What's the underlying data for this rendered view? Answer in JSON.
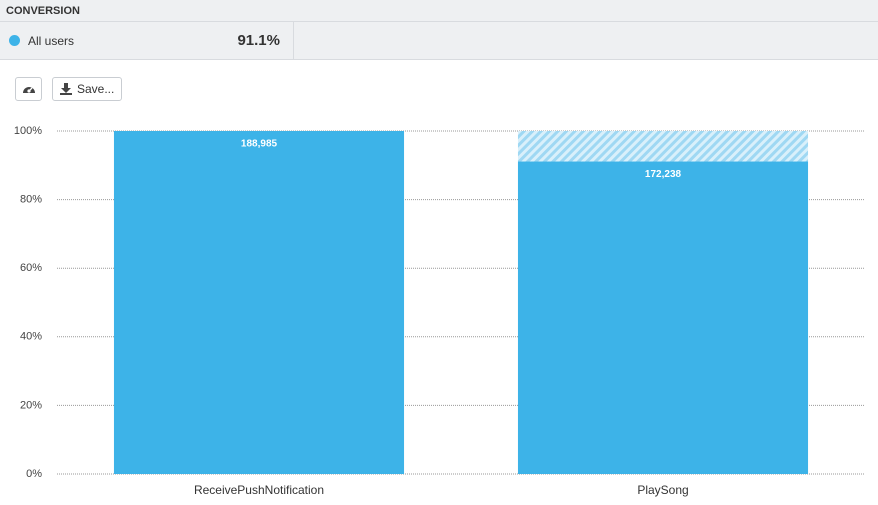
{
  "header": {
    "title": "CONVERSION"
  },
  "legend": {
    "name": "All users",
    "value": "91.1%"
  },
  "toolbar": {
    "save": "Save..."
  },
  "chart_data": {
    "type": "bar",
    "categories": [
      "ReceivePushNotification",
      "PlaySong"
    ],
    "values": [
      100,
      91.1
    ],
    "bar_labels": [
      "188,985",
      "172,238"
    ],
    "color": "#3db3e8",
    "ylim": [
      0,
      100
    ],
    "yticks": [
      {
        "value": 0,
        "label": "0%"
      },
      {
        "value": 20,
        "label": "20%"
      },
      {
        "value": 40,
        "label": "40%"
      },
      {
        "value": 60,
        "label": "60%"
      },
      {
        "value": 80,
        "label": "80%"
      },
      {
        "value": 100,
        "label": "100%"
      }
    ],
    "grid": true
  }
}
